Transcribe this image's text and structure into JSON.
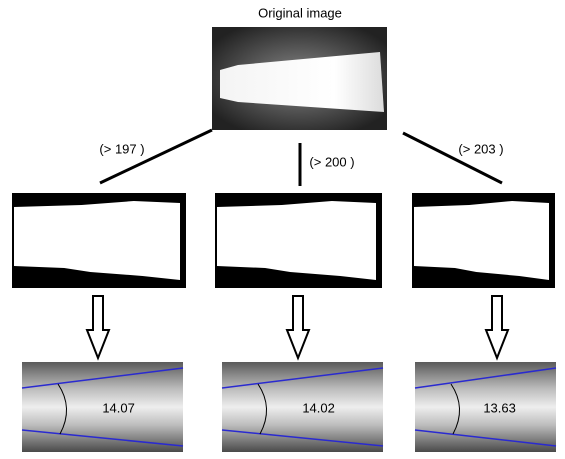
{
  "title": "Original image",
  "branches": [
    {
      "threshold": "(> 197 )",
      "result": 14.07
    },
    {
      "threshold": "(> 200 )",
      "result": 14.02
    },
    {
      "threshold": "(> 203 )",
      "result": 13.63
    }
  ]
}
